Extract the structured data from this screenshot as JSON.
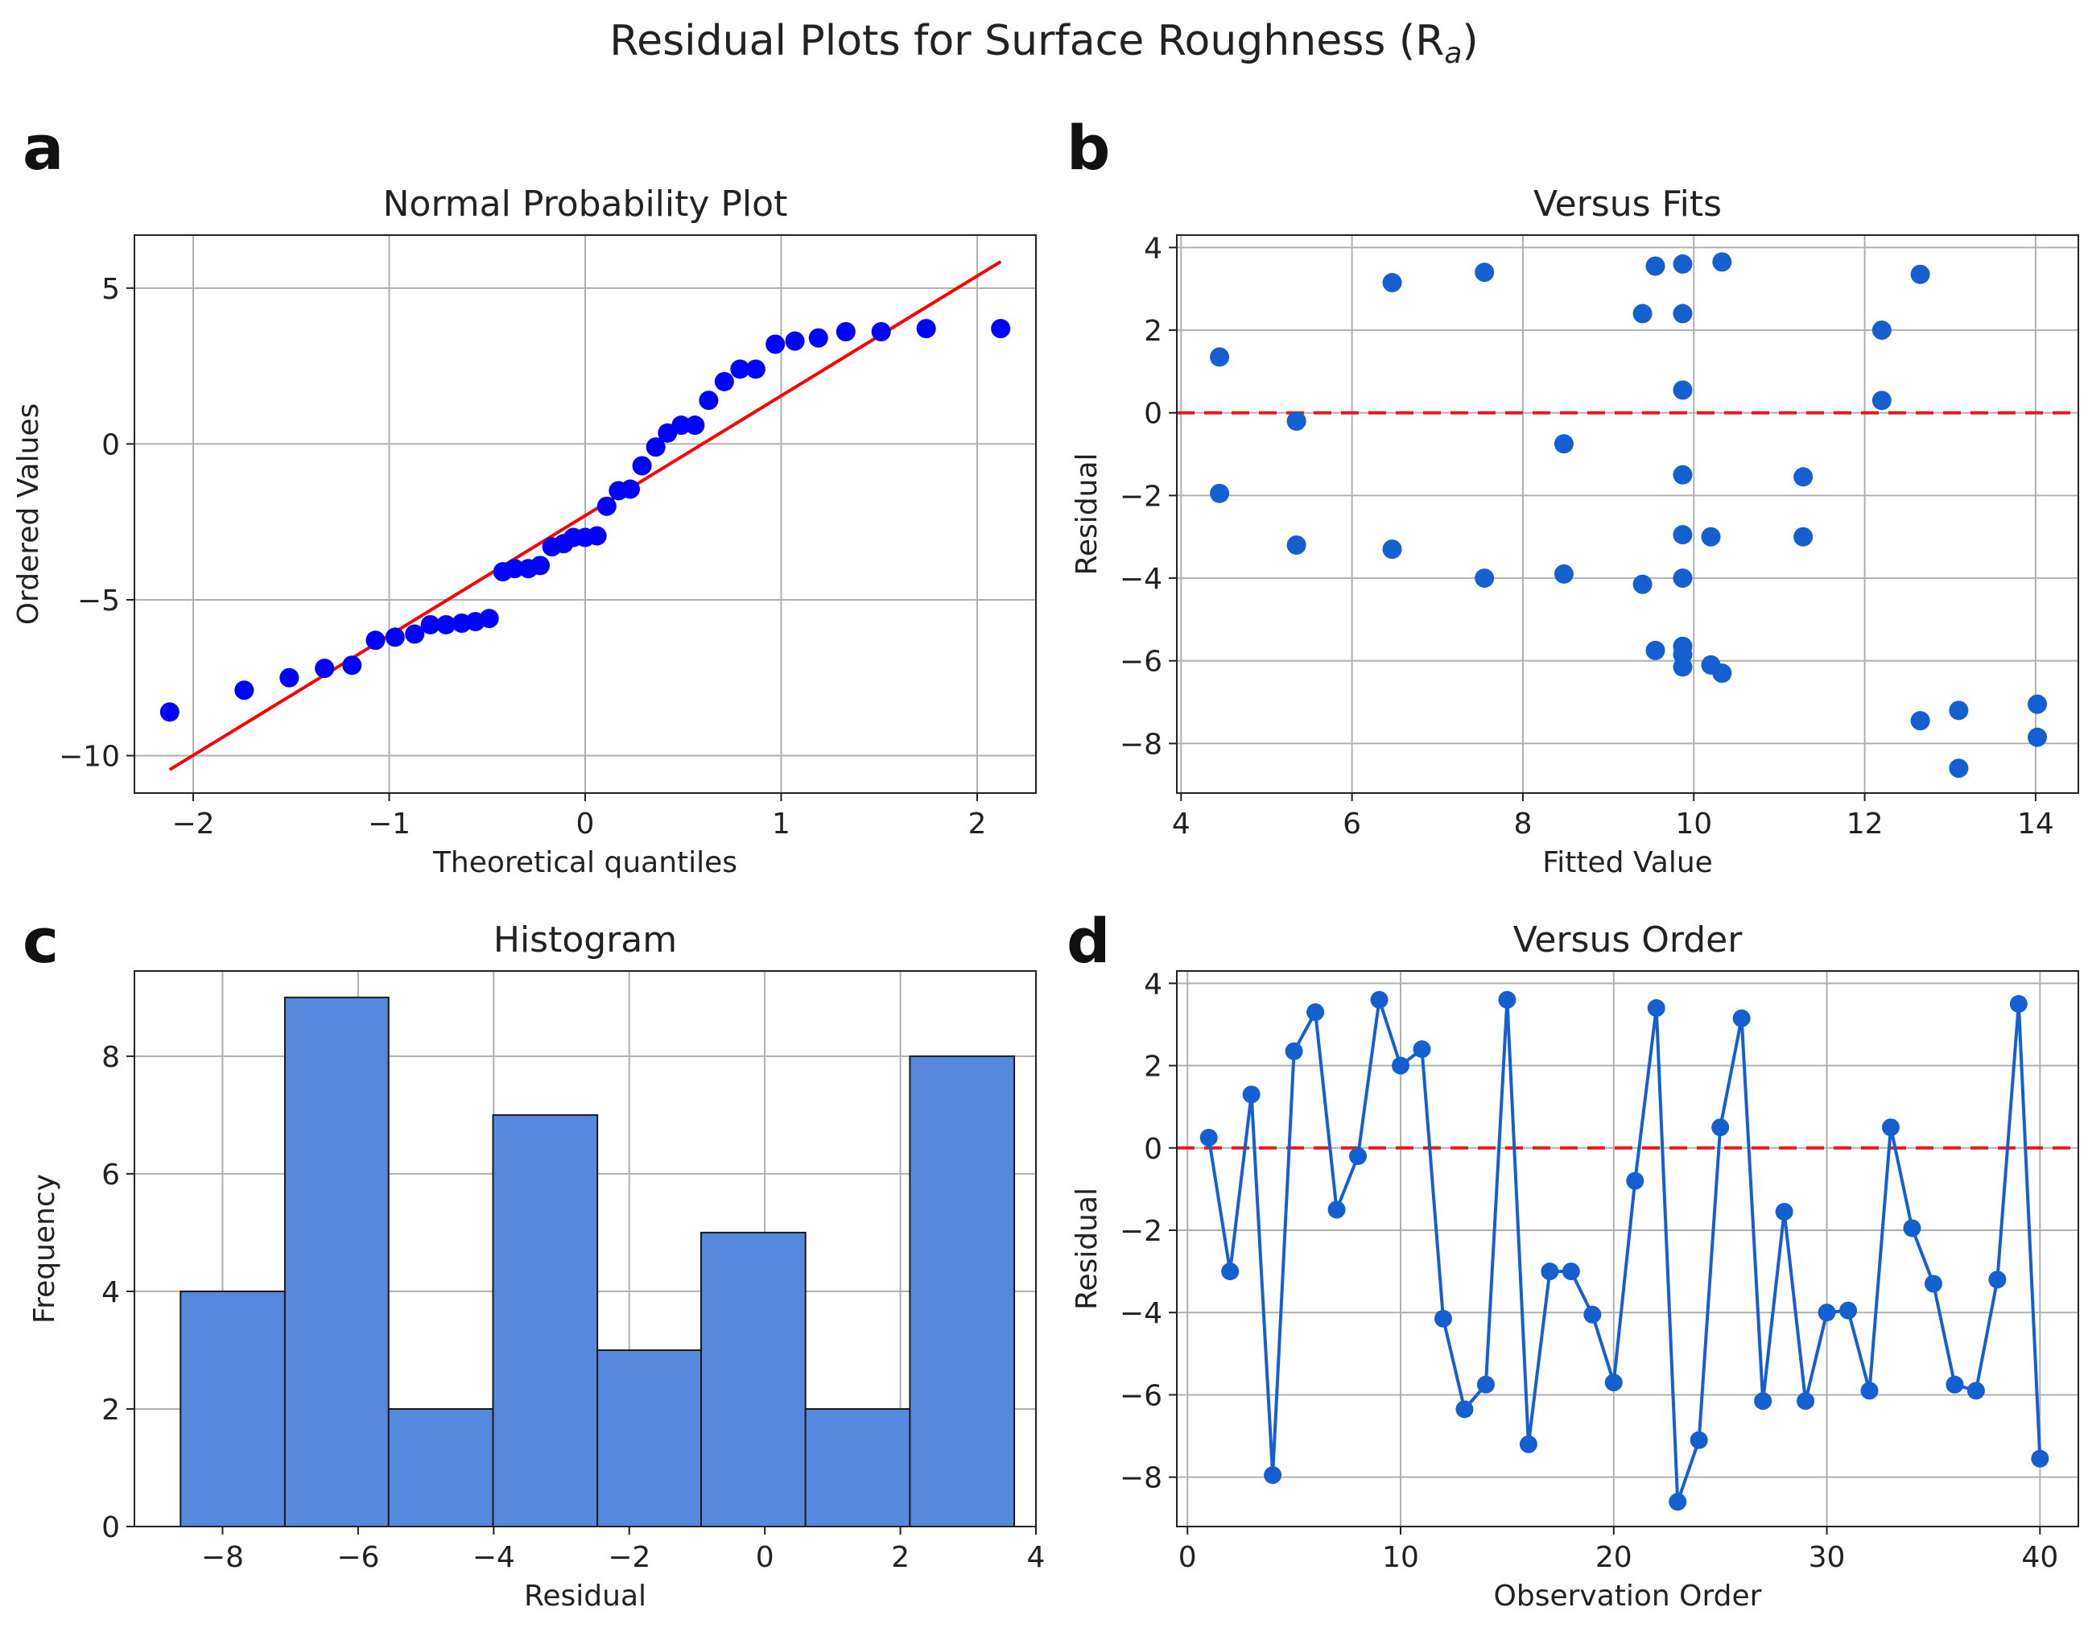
{
  "title": "Residual Plots for Surface Roughness (R",
  "title_sub": "a",
  "title_close": ")",
  "colors": {
    "blue": "#0000ff",
    "mid_blue": "#1560d0",
    "bar_fill": "#5688de",
    "red": "#ff0000",
    "dash_red": "#e8191c"
  },
  "chart_data": [
    {
      "label": "a",
      "type": "scatter",
      "title": "Normal Probability Plot",
      "xlabel": "Theoretical quantiles",
      "ylabel": "Ordered Values",
      "xlim": [
        -2.3,
        2.3
      ],
      "ylim": [
        -11.2,
        6.7
      ],
      "xticks": [
        -2,
        -1,
        0,
        1,
        2
      ],
      "xticklabels": [
        "−2",
        "−1",
        "0",
        "1",
        "2"
      ],
      "yticks": [
        -10,
        -5,
        0,
        5
      ],
      "yticklabels": [
        "−10",
        "−5",
        "0",
        "5"
      ],
      "grid": true,
      "x": [
        -2.12,
        -1.74,
        -1.51,
        -1.33,
        -1.19,
        -1.07,
        -0.97,
        -0.87,
        -0.79,
        -0.71,
        -0.63,
        -0.56,
        -0.49,
        -0.42,
        -0.36,
        -0.29,
        -0.23,
        -0.17,
        -0.11,
        -0.06,
        0.0,
        0.06,
        0.11,
        0.17,
        0.23,
        0.29,
        0.36,
        0.42,
        0.49,
        0.56,
        0.63,
        0.71,
        0.79,
        0.87,
        0.97,
        1.07,
        1.19,
        1.33,
        1.51,
        1.74,
        2.12
      ],
      "y": [
        -8.6,
        -7.9,
        -7.5,
        -7.2,
        -7.1,
        -6.3,
        -6.2,
        -6.1,
        -5.8,
        -5.8,
        -5.75,
        -5.7,
        -5.6,
        -4.1,
        -4.0,
        -4.0,
        -3.9,
        -3.3,
        -3.2,
        -3.0,
        -3.0,
        -2.95,
        -2.0,
        -1.5,
        -1.45,
        -0.7,
        -0.1,
        0.35,
        0.6,
        0.6,
        1.4,
        2.0,
        2.4,
        2.4,
        3.2,
        3.3,
        3.4,
        3.6,
        3.6,
        3.7,
        3.7
      ],
      "fit_line": {
        "x": [
          -2.12,
          2.12
        ],
        "y": [
          -10.45,
          5.85
        ]
      }
    },
    {
      "label": "b",
      "type": "scatter",
      "title": "Versus Fits",
      "xlabel": "Fitted Value",
      "ylabel": "Residual",
      "xlim": [
        3.95,
        14.5
      ],
      "ylim": [
        -9.2,
        4.3
      ],
      "xticks": [
        4,
        6,
        8,
        10,
        12,
        14
      ],
      "xticklabels": [
        "4",
        "6",
        "8",
        "10",
        "12",
        "14"
      ],
      "yticks": [
        -8,
        -6,
        -4,
        -2,
        0,
        2,
        4
      ],
      "yticklabels": [
        "−8",
        "−6",
        "−4",
        "−2",
        "0",
        "2",
        "4"
      ],
      "grid": true,
      "reference_line": 0,
      "x": [
        4.45,
        4.45,
        5.35,
        5.35,
        6.47,
        6.47,
        7.55,
        7.55,
        8.48,
        8.48,
        9.4,
        9.4,
        9.55,
        9.55,
        9.87,
        9.87,
        9.87,
        9.87,
        9.87,
        9.87,
        9.87,
        9.87,
        9.87,
        10.2,
        10.2,
        10.33,
        10.33,
        11.28,
        11.28,
        12.2,
        12.2,
        12.65,
        12.65,
        13.1,
        13.1,
        14.02,
        14.02
      ],
      "y": [
        1.35,
        -1.95,
        -0.2,
        -3.2,
        3.15,
        -3.3,
        3.4,
        -4.0,
        -0.75,
        -3.9,
        2.4,
        -4.15,
        3.55,
        -5.75,
        3.6,
        2.4,
        0.55,
        -1.5,
        -2.95,
        -4.0,
        -5.65,
        -5.85,
        -6.15,
        -3.0,
        -6.1,
        3.65,
        -6.3,
        -1.55,
        -3.0,
        2.0,
        0.3,
        3.35,
        -7.45,
        -7.2,
        -8.6,
        -7.05,
        -7.85
      ]
    },
    {
      "label": "c",
      "type": "bar",
      "title": "Histogram",
      "xlabel": "Residual",
      "ylabel": "Frequency",
      "xlim": [
        -9.3,
        4.0
      ],
      "ylim": [
        0,
        9.45
      ],
      "xticks": [
        -8,
        -6,
        -4,
        -2,
        0,
        2,
        4
      ],
      "xticklabels": [
        "−8",
        "−6",
        "−4",
        "−2",
        "0",
        "2",
        "4"
      ],
      "yticks": [
        0,
        2,
        4,
        6,
        8
      ],
      "yticklabels": [
        "0",
        "2",
        "4",
        "6",
        "8"
      ],
      "grid": true,
      "bin_edges": [
        -8.62,
        -7.08,
        -5.55,
        -4.01,
        -2.47,
        -0.94,
        0.6,
        2.14,
        3.68
      ],
      "values": [
        4,
        9,
        2,
        7,
        3,
        5,
        2,
        8
      ]
    },
    {
      "label": "d",
      "type": "line",
      "title": "Versus Order",
      "xlabel": "Observation Order",
      "ylabel": "Residual",
      "xlim": [
        -0.5,
        41.8
      ],
      "ylim": [
        -9.2,
        4.3
      ],
      "xticks": [
        0,
        10,
        20,
        30,
        40
      ],
      "xticklabels": [
        "0",
        "10",
        "20",
        "30",
        "40"
      ],
      "yticks": [
        -8,
        -6,
        -4,
        -2,
        0,
        2,
        4
      ],
      "yticklabels": [
        "−8",
        "−6",
        "−4",
        "−2",
        "0",
        "2",
        "4"
      ],
      "grid": true,
      "reference_line": 0,
      "x": [
        1,
        2,
        3,
        4,
        5,
        6,
        7,
        8,
        9,
        10,
        11,
        12,
        13,
        14,
        15,
        16,
        17,
        18,
        19,
        20,
        21,
        22,
        23,
        24,
        25,
        26,
        27,
        28,
        29,
        30,
        31,
        32,
        33,
        34,
        35,
        36,
        37,
        38,
        39,
        40
      ],
      "y": [
        0.25,
        -3.0,
        1.3,
        -7.95,
        2.35,
        3.3,
        -1.5,
        -0.2,
        3.6,
        2.0,
        2.4,
        -4.15,
        -6.35,
        -5.75,
        3.6,
        -7.2,
        -3.0,
        -3.0,
        -4.05,
        -5.7,
        -0.8,
        3.4,
        -8.6,
        -7.1,
        0.5,
        3.15,
        -6.15,
        -1.55,
        -6.15,
        -4.0,
        -3.95,
        -5.9,
        0.5,
        -1.95,
        -3.3,
        -5.75,
        -5.9,
        -3.2,
        3.5,
        -7.55
      ]
    }
  ]
}
